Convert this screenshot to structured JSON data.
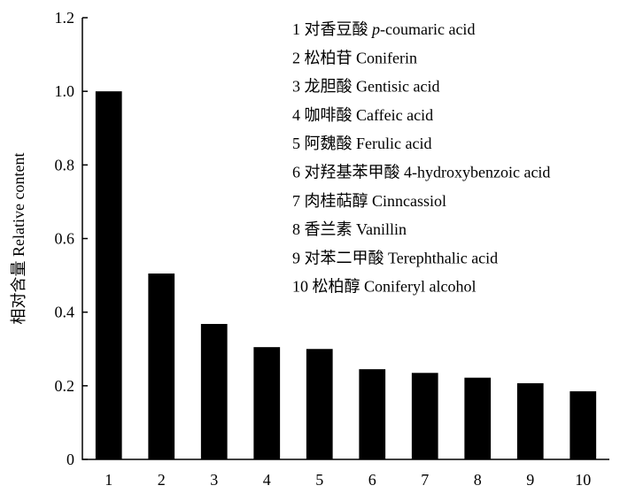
{
  "chart_data": {
    "type": "bar",
    "title": "",
    "xlabel": "",
    "ylabel": "相对含量 Relative content",
    "ylim": [
      0,
      1.2
    ],
    "y_ticks": [
      "0",
      "0.2",
      "0.4",
      "0.6",
      "0.8",
      "1.0",
      "1.2"
    ],
    "categories": [
      "1",
      "2",
      "3",
      "4",
      "5",
      "6",
      "7",
      "8",
      "9",
      "10"
    ],
    "values": [
      1.0,
      0.505,
      0.368,
      0.305,
      0.3,
      0.245,
      0.235,
      0.222,
      0.207,
      0.185
    ],
    "bar_color": "#000000",
    "grid": false,
    "legend_position": "top-right",
    "legend": [
      {
        "prefix": "1  对香豆酸 ",
        "italic": "p",
        "suffix": "-coumaric acid"
      },
      {
        "prefix": "2 松柏苷 Coniferin",
        "italic": "",
        "suffix": ""
      },
      {
        "prefix": "3 龙胆酸 Gentisic acid",
        "italic": "",
        "suffix": ""
      },
      {
        "prefix": "4 咖啡酸 Caffeic acid",
        "italic": "",
        "suffix": ""
      },
      {
        "prefix": "5 阿魏酸 Ferulic acid",
        "italic": "",
        "suffix": ""
      },
      {
        "prefix": "6 对羟基苯甲酸 4-hydroxybenzoic acid",
        "italic": "",
        "suffix": ""
      },
      {
        "prefix": "7 肉桂萜醇 Cinncassiol",
        "italic": "",
        "suffix": ""
      },
      {
        "prefix": "8 香兰素 Vanillin",
        "italic": "",
        "suffix": ""
      },
      {
        "prefix": "9 对苯二甲酸 Terephthalic acid",
        "italic": "",
        "suffix": ""
      },
      {
        "prefix": "10 松柏醇 Coniferyl alcohol",
        "italic": "",
        "suffix": ""
      }
    ]
  }
}
